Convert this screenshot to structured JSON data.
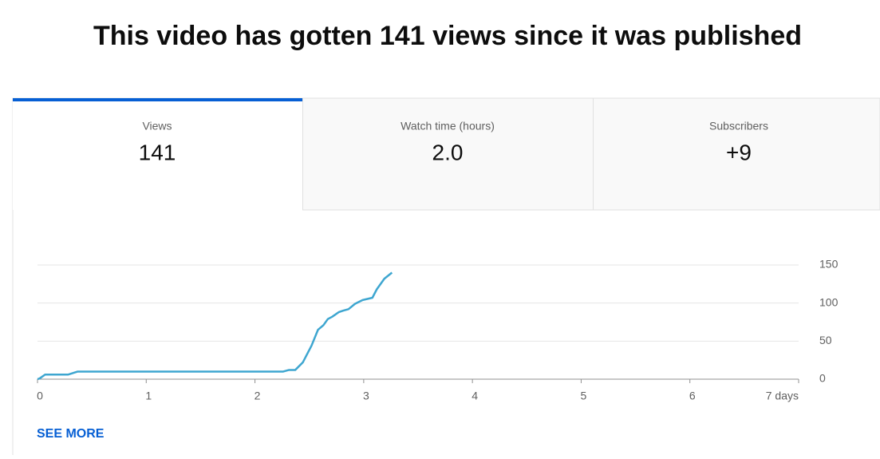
{
  "header": {
    "title": "This video has gotten 141 views since it was published"
  },
  "tabs": [
    {
      "label": "Views",
      "value": "141"
    },
    {
      "label": "Watch time (hours)",
      "value": "2.0"
    },
    {
      "label": "Subscribers",
      "value": "+9"
    }
  ],
  "chart_data": {
    "type": "line",
    "x": [
      0,
      0.02,
      0.07,
      0.28,
      0.37,
      2.26,
      2.31,
      2.37,
      2.44,
      2.52,
      2.58,
      2.63,
      2.67,
      2.71,
      2.77,
      2.81,
      2.86,
      2.92,
      2.99,
      3.08,
      3.12,
      3.19,
      3.26
    ],
    "values": [
      0,
      1,
      6,
      6,
      10,
      10,
      12,
      12,
      22,
      44,
      65,
      71,
      79,
      82,
      88,
      90,
      92,
      99,
      104,
      107,
      118,
      132,
      140
    ],
    "color": "#3ea6d0",
    "xlim": [
      0,
      7
    ],
    "xticks": [
      0,
      1,
      2,
      3,
      4,
      5,
      6,
      {
        "value": 7,
        "label": "7 days"
      }
    ],
    "ylim": [
      0,
      150
    ],
    "yticks": [
      0,
      50,
      100,
      150
    ],
    "grid": true
  },
  "footer": {
    "link": "SEE MORE"
  }
}
